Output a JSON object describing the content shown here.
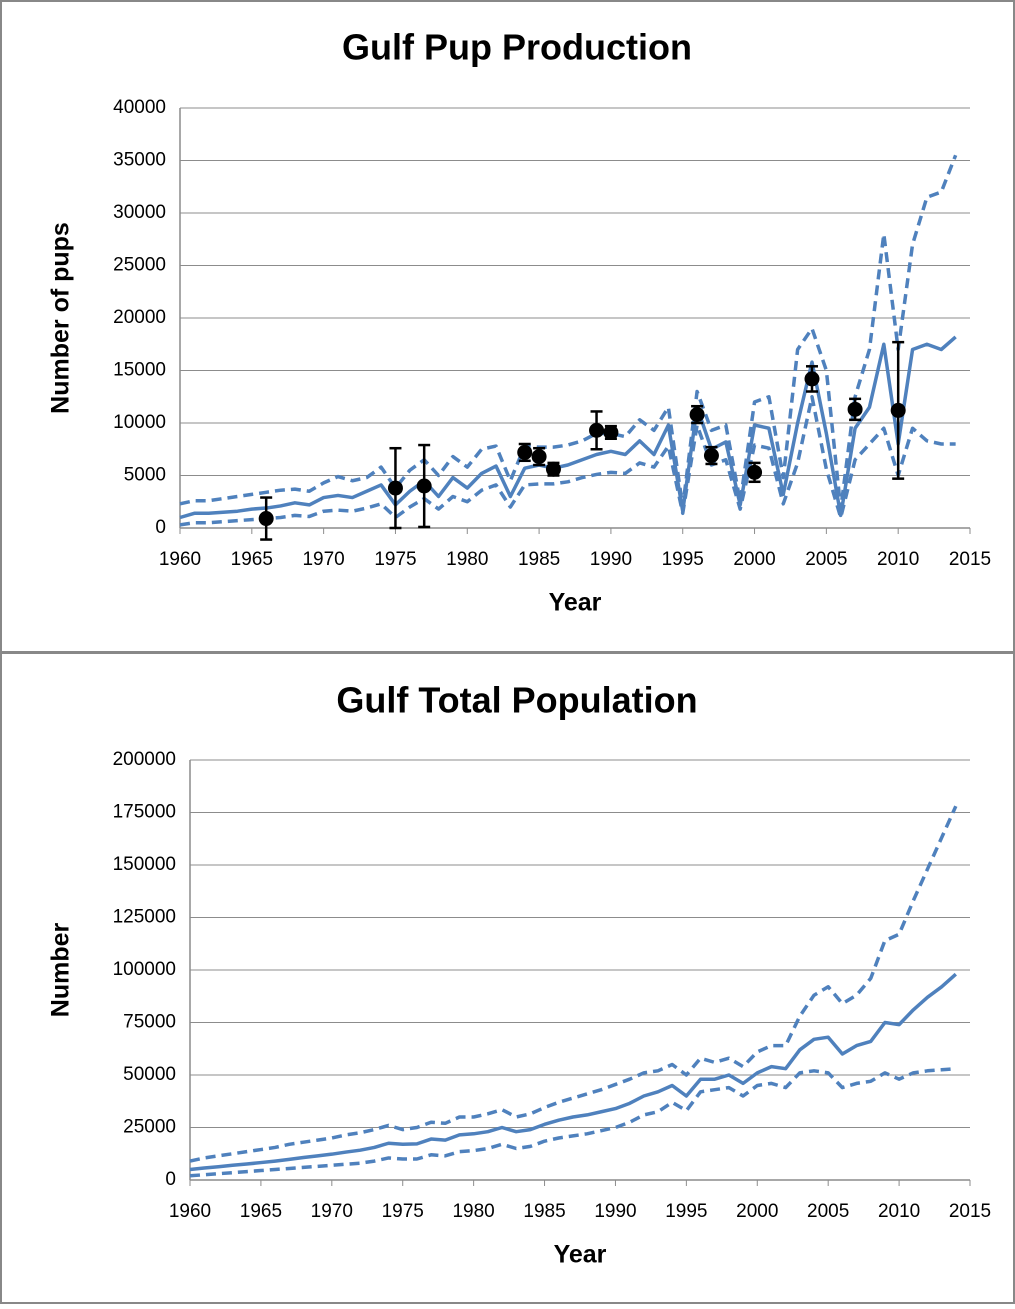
{
  "chart_data": [
    {
      "type": "line",
      "title": "Gulf Pup Production",
      "xlabel": "Year",
      "ylabel": "Number of pups",
      "x": [
        1960,
        1961,
        1962,
        1963,
        1964,
        1965,
        1966,
        1967,
        1968,
        1969,
        1970,
        1971,
        1972,
        1973,
        1974,
        1975,
        1976,
        1977,
        1978,
        1979,
        1980,
        1981,
        1982,
        1983,
        1984,
        1985,
        1986,
        1987,
        1988,
        1989,
        1990,
        1991,
        1992,
        1993,
        1994,
        1995,
        1996,
        1997,
        1998,
        1999,
        2000,
        2001,
        2002,
        2003,
        2004,
        2005,
        2006,
        2007,
        2008,
        2009,
        2010,
        2011,
        2012,
        2013,
        2014
      ],
      "series": [
        {
          "color": "#4f81bd",
          "dashed": false,
          "values": [
            1000,
            1400,
            1400,
            1500,
            1600,
            1800,
            1900,
            2100,
            2400,
            2200,
            2900,
            3100,
            2900,
            3500,
            4100,
            2200,
            3500,
            4500,
            3000,
            4800,
            3800,
            5200,
            5900,
            3000,
            5700,
            6000,
            5700,
            6000,
            6500,
            7000,
            7300,
            7000,
            8300,
            7000,
            9800,
            1600,
            11500,
            7500,
            8200,
            2200,
            9800,
            9500,
            3200,
            10000,
            15800,
            9000,
            1200,
            9500,
            11500,
            17500,
            8000,
            17000,
            17500,
            17000,
            18200
          ]
        },
        {
          "color": "#4f81bd",
          "dashed": true,
          "values": [
            2300,
            2600,
            2600,
            2800,
            3000,
            3200,
            3400,
            3600,
            3700,
            3500,
            4300,
            4900,
            4500,
            4800,
            5800,
            3800,
            5500,
            6500,
            5000,
            6800,
            5800,
            7500,
            7800,
            4500,
            7800,
            7700,
            7700,
            7900,
            8300,
            9000,
            9000,
            8700,
            10300,
            9300,
            11500,
            2000,
            13000,
            9300,
            9800,
            2500,
            12000,
            12500,
            4800,
            17000,
            19000,
            15000,
            1800,
            12500,
            17000,
            28000,
            17000,
            27000,
            31500,
            32000,
            35500
          ]
        },
        {
          "color": "#4f81bd",
          "dashed": true,
          "values": [
            300,
            500,
            500,
            600,
            700,
            800,
            900,
            1000,
            1200,
            1100,
            1600,
            1700,
            1600,
            1900,
            2300,
            1000,
            2000,
            2800,
            1800,
            3000,
            2500,
            3600,
            4100,
            2000,
            4100,
            4200,
            4200,
            4400,
            4800,
            5100,
            5300,
            5200,
            6200,
            5800,
            7800,
            1400,
            9800,
            6000,
            6500,
            1800,
            7900,
            7600,
            2300,
            6200,
            12500,
            5600,
            1000,
            6500,
            8000,
            9500,
            5000,
            9500,
            8300,
            8000,
            8000
          ]
        }
      ],
      "points": {
        "color": "#000000",
        "x": [
          1966,
          1975,
          1977,
          1984,
          1985,
          1986,
          1989,
          1990,
          1996,
          1997,
          2000,
          2004,
          2007,
          2010
        ],
        "values": [
          900,
          3800,
          4000,
          7200,
          6800,
          5600,
          9300,
          9100,
          10800,
          6900,
          5300,
          14200,
          11300,
          11200
        ],
        "errors": [
          2000,
          3800,
          3900,
          800,
          800,
          600,
          1800,
          600,
          800,
          800,
          900,
          1200,
          1000,
          6500
        ]
      },
      "xlim": [
        1960,
        2015
      ],
      "xticks": [
        1960,
        1965,
        1970,
        1975,
        1980,
        1985,
        1990,
        1995,
        2000,
        2005,
        2010,
        2015
      ],
      "ylim": [
        0,
        40000
      ],
      "yticks": [
        0,
        5000,
        10000,
        15000,
        20000,
        25000,
        30000,
        35000,
        40000
      ],
      "grid": true
    },
    {
      "type": "line",
      "title": "Gulf Total Population",
      "xlabel": "Year",
      "ylabel": "Number",
      "x": [
        1960,
        1961,
        1962,
        1963,
        1964,
        1965,
        1966,
        1967,
        1968,
        1969,
        1970,
        1971,
        1972,
        1973,
        1974,
        1975,
        1976,
        1977,
        1978,
        1979,
        1980,
        1981,
        1982,
        1983,
        1984,
        1985,
        1986,
        1987,
        1988,
        1989,
        1990,
        1991,
        1992,
        1993,
        1994,
        1995,
        1996,
        1997,
        1998,
        1999,
        2000,
        2001,
        2002,
        2003,
        2004,
        2005,
        2006,
        2007,
        2008,
        2009,
        2010,
        2011,
        2012,
        2013,
        2014
      ],
      "series": [
        {
          "color": "#4f81bd",
          "dashed": false,
          "values": [
            5000,
            5700,
            6300,
            7000,
            7600,
            8300,
            9000,
            9800,
            10700,
            11500,
            12300,
            13300,
            14200,
            15500,
            17500,
            17000,
            17200,
            19500,
            19000,
            21500,
            22000,
            23000,
            25000,
            23000,
            24000,
            26500,
            28500,
            30000,
            31000,
            32500,
            34000,
            36500,
            40000,
            42000,
            45000,
            40000,
            48000,
            48000,
            50000,
            46000,
            51000,
            54000,
            53000,
            62000,
            67000,
            68000,
            60000,
            64000,
            66000,
            75000,
            74000,
            81000,
            87000,
            92000,
            98000
          ]
        },
        {
          "color": "#4f81bd",
          "dashed": true,
          "values": [
            9000,
            10500,
            11500,
            12500,
            13500,
            14500,
            15500,
            17000,
            18000,
            19000,
            20000,
            21500,
            22500,
            24000,
            26000,
            24000,
            25000,
            27500,
            27000,
            30000,
            30000,
            31500,
            33500,
            30000,
            31500,
            34500,
            37000,
            39000,
            41000,
            43000,
            45500,
            48000,
            51000,
            52000,
            55000,
            50000,
            58000,
            56000,
            58000,
            54000,
            61000,
            64000,
            64000,
            78000,
            88000,
            92000,
            84000,
            88000,
            96000,
            114000,
            117000,
            133000,
            148000,
            163000,
            178000
          ]
        },
        {
          "color": "#4f81bd",
          "dashed": true,
          "values": [
            2000,
            2500,
            3000,
            3500,
            4000,
            4500,
            5000,
            5500,
            6000,
            6500,
            7000,
            7500,
            8000,
            9000,
            10500,
            10000,
            10000,
            12000,
            11500,
            13500,
            14000,
            15000,
            17000,
            15000,
            16000,
            18500,
            20000,
            21000,
            22000,
            23500,
            25000,
            27500,
            31000,
            32500,
            37000,
            33000,
            42000,
            43000,
            44000,
            40000,
            45000,
            46000,
            44000,
            51000,
            52000,
            51000,
            44000,
            46000,
            47000,
            51000,
            48000,
            51000,
            52000,
            52500,
            53000
          ]
        }
      ],
      "xlim": [
        1960,
        2015
      ],
      "xticks": [
        1960,
        1965,
        1970,
        1975,
        1980,
        1985,
        1990,
        1995,
        2000,
        2005,
        2010,
        2015
      ],
      "ylim": [
        0,
        200000
      ],
      "yticks": [
        0,
        25000,
        50000,
        75000,
        100000,
        125000,
        150000,
        175000,
        200000
      ],
      "grid": true
    }
  ]
}
